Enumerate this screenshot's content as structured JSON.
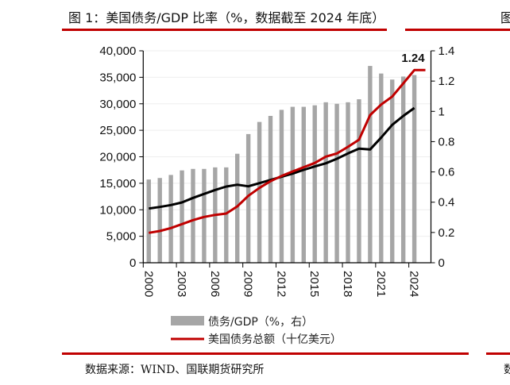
{
  "header": {
    "title": "图 1：美国债务/GDP 比率（%，数据截至 2024 年底）",
    "next_title_fragment": "图"
  },
  "footer": {
    "source": "数据来源：WIND、国联期货研究所",
    "next_source_fragment": "数"
  },
  "colors": {
    "accent": "#c00000",
    "bars": "#a6a6a6",
    "black_line": "#000000",
    "red_line": "#c00000"
  },
  "chart_data": {
    "type": "bar+line",
    "categories": [
      "2000",
      "2001",
      "2002",
      "2003",
      "2004",
      "2005",
      "2006",
      "2007",
      "2008",
      "2009",
      "2010",
      "2011",
      "2012",
      "2013",
      "2014",
      "2015",
      "2016",
      "2017",
      "2018",
      "2019",
      "2020",
      "2021",
      "2022",
      "2023",
      "2024",
      "2025"
    ],
    "x_tick_labels": [
      "2000",
      "2003",
      "2006",
      "2009",
      "2012",
      "2015",
      "2018",
      "2021",
      "2024"
    ],
    "y_left": {
      "range": [
        0,
        40000
      ],
      "ticks": [
        "0",
        "5,000",
        "10,000",
        "15,000",
        "20,000",
        "25,000",
        "30,000",
        "35,000",
        "40,000"
      ]
    },
    "y_right": {
      "range": [
        0,
        1.4
      ],
      "ticks": [
        "0",
        "0.2",
        "0.4",
        "0.6",
        "0.8",
        "1",
        "1.2",
        "1.4"
      ]
    },
    "grid": true,
    "legend_placement": "bottom",
    "annotation": "1.24",
    "series": [
      {
        "name": "债务/GDP（%，右）",
        "type": "bar",
        "axis": "right",
        "values": [
          0.55,
          0.56,
          0.58,
          0.61,
          0.62,
          0.62,
          0.63,
          0.63,
          0.72,
          0.85,
          0.93,
          0.97,
          1.01,
          1.03,
          1.03,
          1.04,
          1.06,
          1.05,
          1.06,
          1.08,
          1.3,
          1.25,
          1.21,
          1.23,
          1.24,
          null
        ]
      },
      {
        "name": "美国债务总额（十亿美元）",
        "type": "line",
        "axis": "left",
        "color": "#c00000",
        "values": [
          5650,
          5990,
          6540,
          7290,
          8040,
          8640,
          9040,
          9290,
          10640,
          12630,
          14130,
          15380,
          16380,
          17230,
          18030,
          18830,
          20030,
          20630,
          21870,
          23220,
          27870,
          29860,
          31360,
          33860,
          36360,
          36360
        ]
      },
      {
        "type": "line",
        "axis": "left",
        "color": "#000000",
        "values": [
          10230,
          10530,
          10890,
          11390,
          12240,
          12990,
          13740,
          14380,
          14730,
          14430,
          15030,
          15630,
          16220,
          16820,
          17530,
          18170,
          18770,
          19630,
          20630,
          21530,
          21380,
          23630,
          26020,
          27720,
          29210,
          null
        ]
      }
    ]
  }
}
